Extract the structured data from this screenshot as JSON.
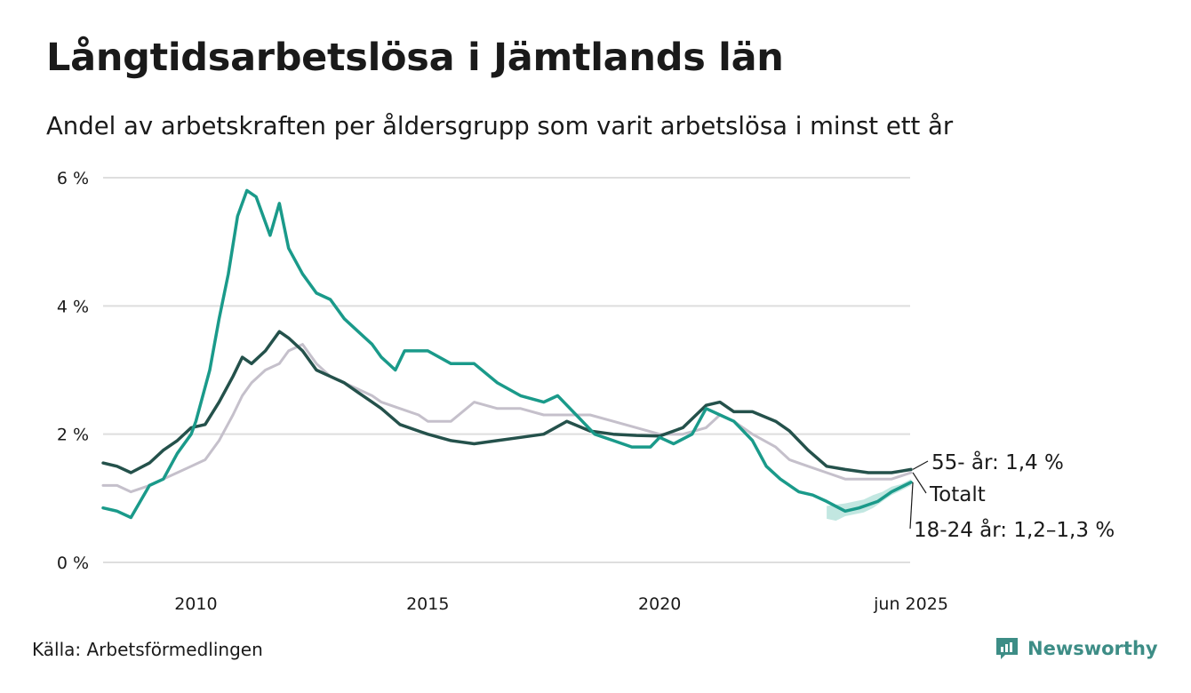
{
  "title": "Långtidsarbetslösa i Jämtlands län",
  "subtitle": "Andel av arbetskraften per åldersgrupp som varit arbetslösa i minst ett år",
  "source": "Källa: Arbetsförmedlingen",
  "brand": "Newsworthy",
  "icons": {
    "brand": "newsworthy-logo-icon"
  },
  "colors": {
    "total": "#c5c0cb",
    "age55": "#24514b",
    "age18_24": "#1a9a8a",
    "band": "#8fd3c8",
    "grid": "#dedede"
  },
  "chart_data": {
    "type": "line",
    "ylim": [
      0,
      6
    ],
    "xlim": [
      2008.0,
      2025.4
    ],
    "yticks": [
      {
        "value": 0,
        "label": "0 %"
      },
      {
        "value": 2,
        "label": "2 %"
      },
      {
        "value": 4,
        "label": "4 %"
      },
      {
        "value": 6,
        "label": "6 %"
      }
    ],
    "xticks": [
      {
        "value": 2010,
        "label": "2010"
      },
      {
        "value": 2015,
        "label": "2015"
      },
      {
        "value": 2020,
        "label": "2020"
      },
      {
        "value": 2025.42,
        "label": "jun 2025"
      }
    ],
    "grid": true,
    "series": [
      {
        "key": "total",
        "end_label": "Totalt",
        "x": [
          2008.0,
          2008.3,
          2008.6,
          2009.0,
          2009.3,
          2009.6,
          2009.9,
          2010.2,
          2010.5,
          2010.8,
          2011.0,
          2011.2,
          2011.5,
          2011.8,
          2012.0,
          2012.3,
          2012.6,
          2012.9,
          2013.2,
          2013.5,
          2013.8,
          2014.0,
          2014.4,
          2014.8,
          2015.0,
          2015.5,
          2016.0,
          2016.5,
          2017.0,
          2017.5,
          2018.0,
          2018.5,
          2019.0,
          2019.5,
          2020.0,
          2020.5,
          2021.0,
          2021.3,
          2021.6,
          2022.0,
          2022.5,
          2022.8,
          2023.2,
          2023.6,
          2024.0,
          2024.5,
          2025.0,
          2025.42
        ],
        "values": [
          1.2,
          1.2,
          1.1,
          1.2,
          1.3,
          1.4,
          1.5,
          1.6,
          1.9,
          2.3,
          2.6,
          2.8,
          3.0,
          3.1,
          3.3,
          3.4,
          3.1,
          2.9,
          2.8,
          2.7,
          2.6,
          2.5,
          2.4,
          2.3,
          2.2,
          2.2,
          2.5,
          2.4,
          2.4,
          2.3,
          2.3,
          2.3,
          2.2,
          2.1,
          2.0,
          2.0,
          2.1,
          2.3,
          2.2,
          2.0,
          1.8,
          1.6,
          1.5,
          1.4,
          1.3,
          1.3,
          1.3,
          1.4
        ]
      },
      {
        "key": "age55",
        "end_label": "55- år: 1,4 %",
        "x": [
          2008.0,
          2008.3,
          2008.6,
          2009.0,
          2009.3,
          2009.6,
          2009.9,
          2010.2,
          2010.5,
          2010.8,
          2011.0,
          2011.2,
          2011.5,
          2011.8,
          2012.0,
          2012.3,
          2012.6,
          2012.9,
          2013.2,
          2013.5,
          2013.8,
          2014.0,
          2014.4,
          2014.8,
          2015.0,
          2015.5,
          2016.0,
          2016.5,
          2017.0,
          2017.5,
          2018.0,
          2018.5,
          2019.0,
          2019.5,
          2020.0,
          2020.5,
          2021.0,
          2021.3,
          2021.6,
          2022.0,
          2022.5,
          2022.8,
          2023.2,
          2023.6,
          2024.0,
          2024.5,
          2025.0,
          2025.42
        ],
        "values": [
          1.55,
          1.5,
          1.4,
          1.55,
          1.75,
          1.9,
          2.1,
          2.15,
          2.5,
          2.9,
          3.2,
          3.1,
          3.3,
          3.6,
          3.5,
          3.3,
          3.0,
          2.9,
          2.8,
          2.65,
          2.5,
          2.4,
          2.15,
          2.05,
          2.0,
          1.9,
          1.85,
          1.9,
          1.95,
          2.0,
          2.2,
          2.05,
          2.0,
          1.98,
          1.97,
          2.1,
          2.45,
          2.5,
          2.35,
          2.35,
          2.2,
          2.05,
          1.75,
          1.5,
          1.45,
          1.4,
          1.4,
          1.45
        ]
      },
      {
        "key": "age18_24",
        "end_label": "18-24 år: 1,2–1,3 %",
        "x": [
          2008.0,
          2008.3,
          2008.6,
          2009.0,
          2009.3,
          2009.6,
          2009.9,
          2010.0,
          2010.3,
          2010.5,
          2010.7,
          2010.9,
          2011.1,
          2011.3,
          2011.6,
          2011.8,
          2012.0,
          2012.3,
          2012.6,
          2012.9,
          2013.2,
          2013.5,
          2013.8,
          2014.0,
          2014.3,
          2014.5,
          2015.0,
          2015.5,
          2016.0,
          2016.5,
          2017.0,
          2017.5,
          2017.8,
          2018.2,
          2018.6,
          2019.0,
          2019.4,
          2019.8,
          2020.0,
          2020.3,
          2020.7,
          2021.0,
          2021.3,
          2021.6,
          2022.0,
          2022.3,
          2022.6,
          2023.0,
          2023.3,
          2023.6,
          2024.0,
          2024.3,
          2024.7,
          2025.0,
          2025.42
        ],
        "values": [
          0.85,
          0.8,
          0.7,
          1.2,
          1.3,
          1.7,
          2.0,
          2.2,
          3.0,
          3.8,
          4.5,
          5.4,
          5.8,
          5.7,
          5.1,
          5.6,
          4.9,
          4.5,
          4.2,
          4.1,
          3.8,
          3.6,
          3.4,
          3.2,
          3.0,
          3.3,
          3.3,
          3.1,
          3.1,
          2.8,
          2.6,
          2.5,
          2.6,
          2.3,
          2.0,
          1.9,
          1.8,
          1.8,
          1.95,
          1.85,
          2.0,
          2.4,
          2.3,
          2.2,
          1.9,
          1.5,
          1.3,
          1.1,
          1.05,
          0.95,
          0.8,
          0.85,
          0.95,
          1.1,
          1.25
        ]
      }
    ],
    "uncertainty_band": {
      "series": "age18_24",
      "x": [
        2023.6,
        2023.8,
        2024.0,
        2024.2,
        2024.4,
        2024.6,
        2024.8,
        2025.0,
        2025.2,
        2025.42
      ],
      "low": [
        0.68,
        0.65,
        0.72,
        0.75,
        0.78,
        0.85,
        0.95,
        1.05,
        1.12,
        1.2
      ],
      "high": [
        0.88,
        0.9,
        0.92,
        0.95,
        0.98,
        1.05,
        1.1,
        1.18,
        1.22,
        1.3
      ]
    }
  }
}
